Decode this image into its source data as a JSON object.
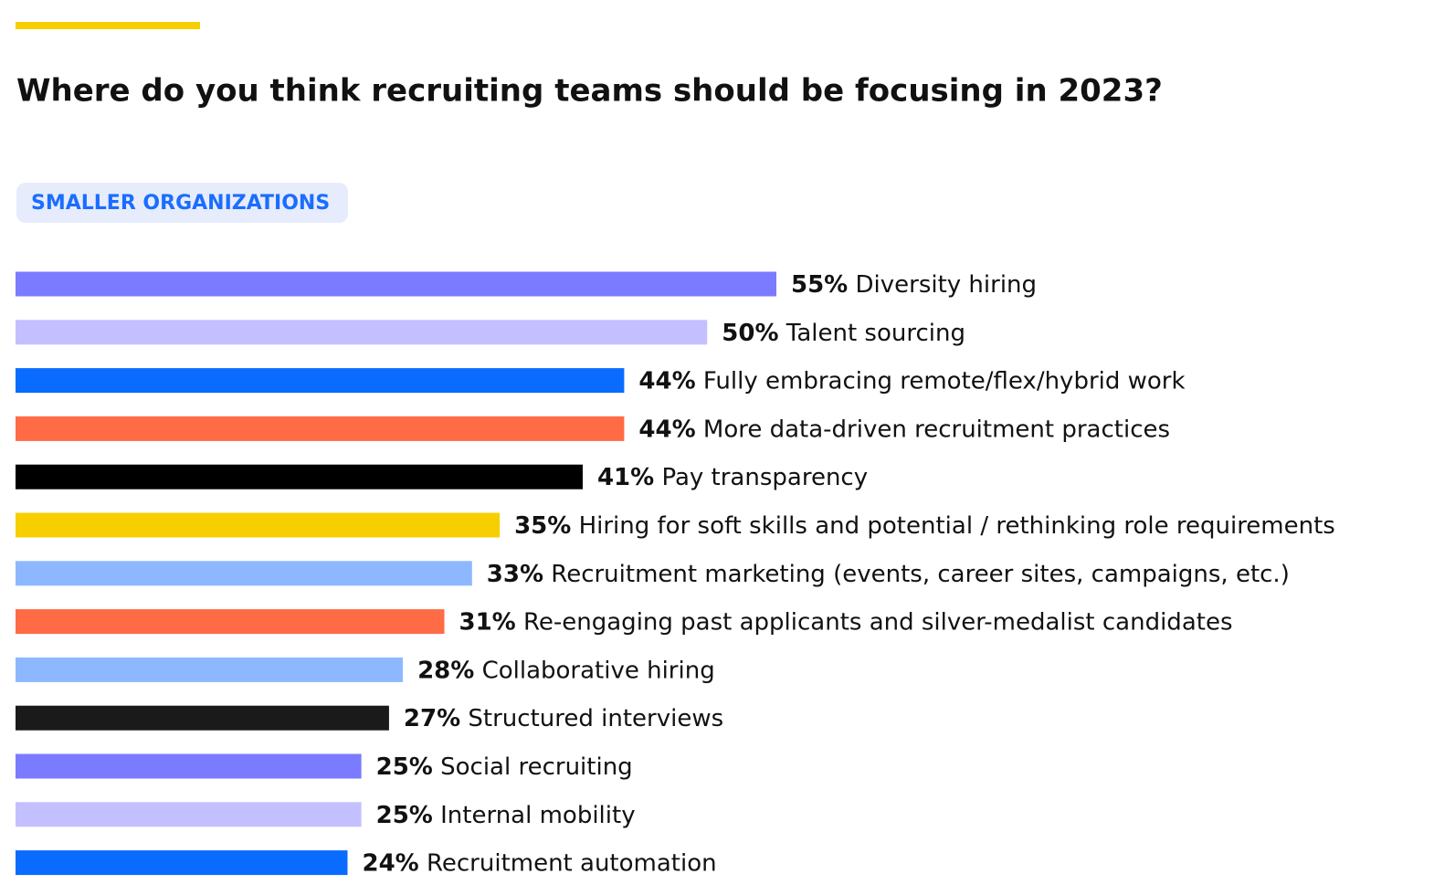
{
  "chart_data": {
    "type": "bar",
    "orientation": "horizontal",
    "title": "Where do you think recruiting teams should be focusing in 2023?",
    "subtitle": "SMALLER ORGANIZATIONS",
    "categories": [
      "Diversity hiring",
      "Talent sourcing",
      "Fully embracing remote/flex/hybrid work",
      "More data-driven recruitment practices",
      "Pay transparency",
      "Hiring for soft skills and potential / rethinking role requirements",
      "Recruitment marketing (events, career sites, campaigns, etc.)",
      "Re-engaging past applicants and silver-medalist candidates",
      "Collaborative hiring",
      "Structured interviews",
      "Social recruiting",
      "Internal mobility",
      "Recruitment automation"
    ],
    "values": [
      55,
      50,
      44,
      44,
      41,
      35,
      33,
      31,
      28,
      27,
      25,
      25,
      24
    ],
    "value_labels": [
      "55%",
      "50%",
      "44%",
      "44%",
      "41%",
      "35%",
      "33%",
      "31%",
      "28%",
      "27%",
      "25%",
      "25%",
      "24%"
    ],
    "colors": [
      "#7b7bff",
      "#c4c0ff",
      "#0a6cff",
      "#ff6b45",
      "#000000",
      "#f7cf00",
      "#8db8ff",
      "#ff6b45",
      "#8db8ff",
      "#1a1a1a",
      "#7b7bff",
      "#c4c0ff",
      "#0a6cff"
    ]
  }
}
